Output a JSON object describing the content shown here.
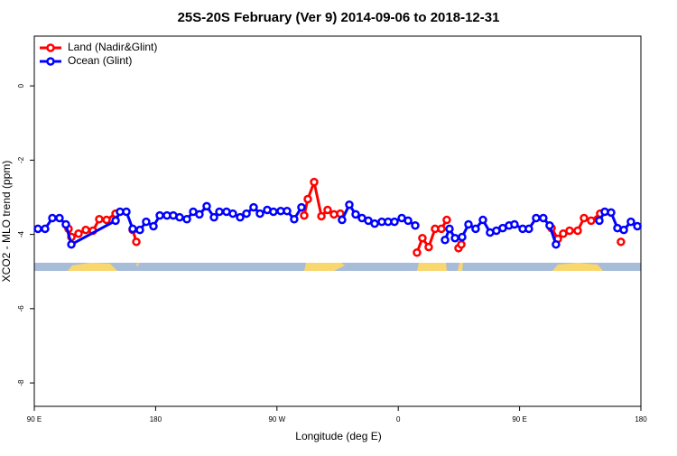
{
  "chart_data": {
    "type": "line",
    "title": "25S-20S February (Ver 9)   2014-09-06 to 2018-12-31",
    "x_label": "Longitude (deg E)",
    "y_label": "XCO2 - MLO trend (ppm)",
    "xlim": [
      90,
      540
    ],
    "xticks": [
      {
        "value": 90,
        "label": "90 E"
      },
      180,
      {
        "value": 270,
        "label": "90 W"
      },
      {
        "value": 360,
        "label": "0"
      },
      {
        "value": 450,
        "label": "90 E"
      },
      {
        "value": 540,
        "label": "180"
      }
    ],
    "ylim": [
      -8.63,
      1.34
    ],
    "yticks": [
      0,
      -2,
      -4,
      -6,
      -8
    ],
    "legend": "top-left",
    "series": [
      {
        "name": "Land (Nadir&Glint)",
        "color": "#ff0000",
        "x": [
          115.4,
          117.5,
          122.8,
          128.2,
          133.5,
          138.2,
          143.6,
          150.3,
          null,
          163.0,
          165.7,
          null,
          290.2,
          292.9,
          297.6,
          303.0,
          307.6,
          312.3,
          317.0,
          null,
          373.9,
          377.9,
          382.6,
          387.3,
          392.0,
          396.0,
          null,
          404.7,
          406.8,
          null,
          473.7,
          478.4,
          482.4,
          487.1,
          493.1,
          497.8,
          503.1,
          509.8,
          null,
          525.2
        ],
        "values": [
          -3.85,
          -4.07,
          -3.98,
          -3.88,
          -3.9,
          -3.59,
          -3.61,
          -3.44,
          null,
          -3.88,
          -4.2,
          null,
          -3.49,
          -3.05,
          -2.59,
          -3.51,
          -3.34,
          -3.46,
          -3.44,
          null,
          -4.49,
          -4.1,
          -4.34,
          -3.85,
          -3.85,
          -3.61,
          null,
          -4.37,
          -4.27,
          null,
          -3.83,
          -4.12,
          -3.98,
          -3.9,
          -3.9,
          -3.56,
          -3.63,
          -3.44,
          null,
          -4.2
        ]
      },
      {
        "name": "Ocean (Glint)",
        "color": "#0000ff",
        "x": [
          92.7,
          98.0,
          103.4,
          108.7,
          113.4,
          117.5,
          150.3,
          153.6,
          158.3,
          163.0,
          168.3,
          173.0,
          178.4,
          183.1,
          188.4,
          193.1,
          197.8,
          203.2,
          207.9,
          212.5,
          217.9,
          223.3,
          227.3,
          232.6,
          237.3,
          242.7,
          247.4,
          252.7,
          257.4,
          262.8,
          267.4,
          272.8,
          277.5,
          282.8,
          288.2,
          null,
          318.3,
          323.7,
          328.4,
          333.1,
          337.8,
          342.5,
          347.8,
          352.5,
          357.2,
          362.6,
          367.3,
          372.6,
          null,
          394.7,
          398.0,
          402.1,
          407.4,
          412.1,
          417.4,
          422.8,
          428.1,
          432.8,
          437.5,
          442.2,
          446.2,
          452.3,
          456.9,
          462.3,
          467.6,
          472.3,
          477.0,
          null,
          509.2,
          513.2,
          517.9,
          522.6,
          527.3,
          532.6,
          537.4
        ],
        "values": [
          -3.85,
          -3.85,
          -3.56,
          -3.56,
          -3.73,
          -4.27,
          -3.63,
          -3.39,
          -3.39,
          -3.85,
          -3.88,
          -3.66,
          -3.78,
          -3.49,
          -3.49,
          -3.49,
          -3.54,
          -3.59,
          -3.39,
          -3.46,
          -3.24,
          -3.54,
          -3.39,
          -3.39,
          -3.44,
          -3.54,
          -3.44,
          -3.27,
          -3.44,
          -3.34,
          -3.39,
          -3.37,
          -3.37,
          -3.59,
          -3.27,
          null,
          -3.61,
          -3.2,
          -3.46,
          -3.56,
          -3.63,
          -3.71,
          -3.66,
          -3.66,
          -3.66,
          -3.56,
          -3.63,
          -3.76,
          null,
          -4.15,
          -3.85,
          -4.1,
          -4.07,
          -3.73,
          -3.85,
          -3.61,
          -3.95,
          -3.9,
          -3.83,
          -3.76,
          -3.73,
          -3.85,
          -3.85,
          -3.56,
          -3.56,
          -3.76,
          -4.27,
          null,
          -3.63,
          -3.39,
          -3.41,
          -3.83,
          -3.88,
          -3.66,
          -3.78
        ]
      }
    ]
  }
}
